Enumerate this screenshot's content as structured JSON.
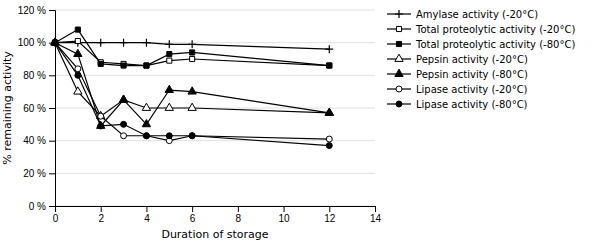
{
  "chart_data": {
    "type": "line",
    "xlabel": "Duration of storage",
    "ylabel": "% remaining activity",
    "xlim": [
      0,
      14
    ],
    "ylim": [
      0,
      120
    ],
    "xticks": [
      0,
      2,
      4,
      6,
      8,
      10,
      12,
      14
    ],
    "yticks": [
      {
        "value": 0,
        "label": "0 %"
      },
      {
        "value": 20,
        "label": "20 %"
      },
      {
        "value": 40,
        "label": "40 %"
      },
      {
        "value": 60,
        "label": "60 %"
      },
      {
        "value": 80,
        "label": "80 %"
      },
      {
        "value": 100,
        "label": "100 %"
      },
      {
        "value": 120,
        "label": "120 %"
      }
    ],
    "grid": true,
    "legend": "right",
    "x": [
      0,
      1,
      2,
      3,
      4,
      5,
      6,
      12
    ],
    "series": [
      {
        "name": "Amylase activity (-20°C)",
        "color": "#000000",
        "marker": "plus",
        "line_style": "solid",
        "values": [
          100,
          100,
          100,
          100,
          100,
          99,
          99,
          96
        ]
      },
      {
        "name": "Total proteolytic activity (-20°C)",
        "color": "#000000",
        "marker": "square-open",
        "line_style": "solid",
        "values": [
          100,
          101,
          88,
          87,
          86,
          89,
          90,
          86
        ]
      },
      {
        "name": "Total proteolytic activity (-80°C)",
        "color": "#000000",
        "marker": "square",
        "line_style": "solid",
        "values": [
          100,
          108,
          87,
          86,
          86,
          93,
          94,
          86
        ]
      },
      {
        "name": "Pepsin activity (-20°C)",
        "color": "#000000",
        "marker": "triangle-open",
        "line_style": "solid",
        "values": [
          100,
          70,
          55,
          65,
          60,
          60,
          60,
          57
        ]
      },
      {
        "name": "Pepsin activity (-80°C)",
        "color": "#000000",
        "marker": "triangle",
        "line_style": "solid",
        "values": [
          100,
          93,
          49,
          65,
          50,
          71,
          70,
          57
        ]
      },
      {
        "name": "Lipase activity (-20°C)",
        "color": "#000000",
        "marker": "circle-open",
        "line_style": "solid",
        "values": [
          100,
          84,
          55,
          43,
          43,
          40,
          43,
          41
        ]
      },
      {
        "name": "Lipase activity (-80°C)",
        "color": "#000000",
        "marker": "circle",
        "line_style": "solid",
        "values": [
          100,
          80,
          49,
          50,
          43,
          43,
          43,
          37
        ]
      }
    ]
  }
}
